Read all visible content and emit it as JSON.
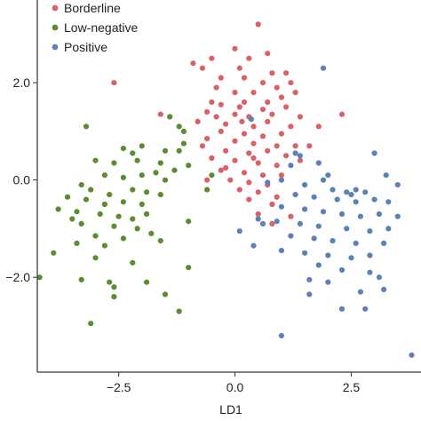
{
  "chart_data": {
    "type": "scatter",
    "title": "",
    "xlabel": "LD1",
    "ylabel": "",
    "xlim": [
      -4.25,
      4.0
    ],
    "ylim": [
      -3.95,
      3.7
    ],
    "xticks": [
      -2.5,
      0.0,
      2.5
    ],
    "yticks": [
      -2.0,
      0.0,
      2.0
    ],
    "x_tick_labels": [
      "−2.5",
      "0.0",
      "2.5"
    ],
    "y_tick_labels": [
      "−2.0",
      "0.0",
      "2.0"
    ],
    "grid": false,
    "legend_position": "top-left",
    "series": [
      {
        "name": "Borderline",
        "color": "#d9626a",
        "points": [
          [
            0.5,
            3.2
          ],
          [
            0.0,
            2.7
          ],
          [
            -0.5,
            2.5
          ],
          [
            0.3,
            2.5
          ],
          [
            0.7,
            2.6
          ],
          [
            -0.9,
            2.4
          ],
          [
            -2.6,
            2.0
          ],
          [
            -0.7,
            2.3
          ],
          [
            0.1,
            2.3
          ],
          [
            0.8,
            2.2
          ],
          [
            1.1,
            2.2
          ],
          [
            -0.3,
            2.1
          ],
          [
            0.2,
            2.1
          ],
          [
            0.6,
            2.0
          ],
          [
            1.2,
            2.0
          ],
          [
            -0.4,
            1.9
          ],
          [
            0.0,
            1.8
          ],
          [
            0.4,
            1.8
          ],
          [
            0.9,
            1.9
          ],
          [
            1.3,
            1.8
          ],
          [
            -0.5,
            1.6
          ],
          [
            -0.3,
            1.55
          ],
          [
            0.2,
            1.6
          ],
          [
            0.7,
            1.6
          ],
          [
            1.0,
            1.7
          ],
          [
            -0.6,
            1.4
          ],
          [
            0.1,
            1.5
          ],
          [
            0.6,
            1.45
          ],
          [
            1.1,
            1.5
          ],
          [
            -1.6,
            1.35
          ],
          [
            -0.4,
            1.3
          ],
          [
            0.0,
            1.35
          ],
          [
            0.3,
            1.3
          ],
          [
            0.8,
            1.35
          ],
          [
            1.4,
            1.3
          ],
          [
            2.3,
            1.35
          ],
          [
            -0.8,
            1.2
          ],
          [
            -0.2,
            1.15
          ],
          [
            0.4,
            1.1
          ],
          [
            0.7,
            1.2
          ],
          [
            1.2,
            1.1
          ],
          [
            1.8,
            1.1
          ],
          [
            -0.3,
            1.0
          ],
          [
            0.2,
            0.95
          ],
          [
            0.6,
            0.9
          ],
          [
            1.0,
            0.95
          ],
          [
            -0.6,
            0.85
          ],
          [
            0.0,
            0.8
          ],
          [
            0.4,
            0.75
          ],
          [
            0.9,
            0.7
          ],
          [
            1.3,
            0.7
          ],
          [
            1.6,
            0.7
          ],
          [
            -0.2,
            0.6
          ],
          [
            0.3,
            0.55
          ],
          [
            0.7,
            0.6
          ],
          [
            1.1,
            0.5
          ],
          [
            -0.5,
            0.45
          ],
          [
            0.0,
            0.4
          ],
          [
            0.5,
            0.35
          ],
          [
            0.9,
            0.3
          ],
          [
            -0.3,
            0.2
          ],
          [
            0.2,
            0.15
          ],
          [
            0.6,
            0.1
          ],
          [
            1.0,
            0.1
          ],
          [
            -0.6,
            0.0
          ],
          [
            -0.1,
            0.0
          ],
          [
            0.3,
            -0.05
          ],
          [
            0.7,
            -0.1
          ],
          [
            0.1,
            -0.2
          ],
          [
            0.5,
            -0.25
          ],
          [
            0.9,
            -0.35
          ],
          [
            0.3,
            -0.4
          ],
          [
            0.8,
            -0.5
          ],
          [
            0.5,
            -0.7
          ],
          [
            1.2,
            -0.75
          ],
          [
            0.8,
            -0.9
          ],
          [
            -0.2,
            0.25
          ],
          [
            0.4,
            0.45
          ],
          [
            1.4,
            0.4
          ],
          [
            -0.7,
            0.7
          ],
          [
            0.15,
            1.2
          ]
        ]
      },
      {
        "name": "Low-negative",
        "color": "#5b8c32",
        "points": [
          [
            -3.2,
            1.1
          ],
          [
            -1.2,
            1.1
          ],
          [
            -1.4,
            1.3
          ],
          [
            -1.1,
            1.0
          ],
          [
            -2.4,
            0.65
          ],
          [
            -2.2,
            0.55
          ],
          [
            -1.2,
            0.6
          ],
          [
            -3.0,
            0.4
          ],
          [
            -2.6,
            0.35
          ],
          [
            -2.1,
            0.4
          ],
          [
            -1.6,
            0.35
          ],
          [
            -1.0,
            0.3
          ],
          [
            -2.8,
            0.1
          ],
          [
            -2.4,
            0.05
          ],
          [
            -2.0,
            0.1
          ],
          [
            -1.7,
            0.15
          ],
          [
            -1.5,
            0.0
          ],
          [
            -3.3,
            -0.1
          ],
          [
            -3.1,
            -0.2
          ],
          [
            -2.7,
            -0.3
          ],
          [
            -2.2,
            -0.2
          ],
          [
            -1.9,
            -0.25
          ],
          [
            -1.6,
            -0.3
          ],
          [
            -3.6,
            -0.35
          ],
          [
            -3.2,
            -0.4
          ],
          [
            -2.8,
            -0.5
          ],
          [
            -2.4,
            -0.45
          ],
          [
            -2.0,
            -0.5
          ],
          [
            -3.8,
            -0.6
          ],
          [
            -3.4,
            -0.65
          ],
          [
            -2.9,
            -0.7
          ],
          [
            -2.5,
            -0.75
          ],
          [
            -2.2,
            -0.8
          ],
          [
            -1.9,
            -0.7
          ],
          [
            -1.0,
            -0.85
          ],
          [
            -3.5,
            -0.8
          ],
          [
            -3.3,
            -0.9
          ],
          [
            -2.6,
            -0.95
          ],
          [
            -2.1,
            -1.0
          ],
          [
            -3.0,
            -1.15
          ],
          [
            -2.4,
            -1.2
          ],
          [
            -1.8,
            -1.1
          ],
          [
            -3.4,
            -1.3
          ],
          [
            -2.8,
            -1.35
          ],
          [
            -1.6,
            -1.25
          ],
          [
            -3.9,
            -1.5
          ],
          [
            -3.0,
            -1.6
          ],
          [
            -2.2,
            -1.7
          ],
          [
            -1.0,
            -1.8
          ],
          [
            -4.2,
            -2.0
          ],
          [
            -3.3,
            -2.05
          ],
          [
            -2.7,
            -2.1
          ],
          [
            -2.6,
            -2.2
          ],
          [
            -1.5,
            -2.35
          ],
          [
            -2.6,
            -2.4
          ],
          [
            -1.2,
            -2.7
          ],
          [
            -3.1,
            -2.95
          ],
          [
            -1.9,
            -2.1
          ],
          [
            -1.1,
            0.75
          ],
          [
            -1.5,
            0.6
          ],
          [
            -0.5,
            0.1
          ],
          [
            -0.6,
            -0.2
          ],
          [
            -2.0,
            0.7
          ],
          [
            -1.3,
            0.2
          ]
        ]
      },
      {
        "name": "Positive",
        "color": "#5b82b6",
        "points": [
          [
            0.35,
            1.25
          ],
          [
            1.9,
            2.3
          ],
          [
            1.3,
            0.55
          ],
          [
            1.4,
            0.5
          ],
          [
            1.2,
            0.3
          ],
          [
            2.0,
            0.1
          ],
          [
            1.8,
            0.35
          ],
          [
            3.0,
            0.55
          ],
          [
            3.25,
            0.1
          ],
          [
            3.5,
            -0.1
          ],
          [
            1.0,
            0.0
          ],
          [
            0.7,
            -0.05
          ],
          [
            1.5,
            -0.1
          ],
          [
            2.1,
            -0.2
          ],
          [
            2.4,
            -0.25
          ],
          [
            2.6,
            -0.2
          ],
          [
            2.8,
            -0.25
          ],
          [
            1.3,
            -0.3
          ],
          [
            1.7,
            -0.35
          ],
          [
            2.2,
            -0.4
          ],
          [
            2.6,
            -0.45
          ],
          [
            3.0,
            -0.4
          ],
          [
            3.3,
            -0.45
          ],
          [
            1.0,
            -0.55
          ],
          [
            1.5,
            -0.6
          ],
          [
            1.9,
            -0.65
          ],
          [
            2.3,
            -0.7
          ],
          [
            2.7,
            -0.75
          ],
          [
            3.1,
            -0.7
          ],
          [
            3.5,
            -0.75
          ],
          [
            0.5,
            -0.8
          ],
          [
            0.9,
            -0.85
          ],
          [
            1.4,
            -0.9
          ],
          [
            1.8,
            -0.95
          ],
          [
            2.4,
            -1.0
          ],
          [
            2.9,
            -1.05
          ],
          [
            3.3,
            -1.0
          ],
          [
            0.1,
            -1.05
          ],
          [
            1.2,
            -1.15
          ],
          [
            1.7,
            -1.2
          ],
          [
            2.1,
            -1.25
          ],
          [
            2.6,
            -1.3
          ],
          [
            3.2,
            -1.3
          ],
          [
            0.4,
            -1.35
          ],
          [
            1.0,
            -1.45
          ],
          [
            1.5,
            -1.5
          ],
          [
            2.0,
            -1.55
          ],
          [
            2.5,
            -1.6
          ],
          [
            2.9,
            -1.55
          ],
          [
            1.8,
            -1.75
          ],
          [
            2.3,
            -1.85
          ],
          [
            2.9,
            -1.9
          ],
          [
            3.1,
            -2.0
          ],
          [
            1.6,
            -2.05
          ],
          [
            2.0,
            -2.1
          ],
          [
            3.2,
            -2.25
          ],
          [
            1.6,
            -2.35
          ],
          [
            2.3,
            -2.65
          ],
          [
            2.8,
            -2.65
          ],
          [
            1.0,
            -3.2
          ],
          [
            2.7,
            -2.3
          ],
          [
            3.8,
            -3.6
          ],
          [
            2.5,
            -0.3
          ],
          [
            0.6,
            -0.9
          ],
          [
            1.9,
            0.0
          ]
        ]
      }
    ]
  }
}
